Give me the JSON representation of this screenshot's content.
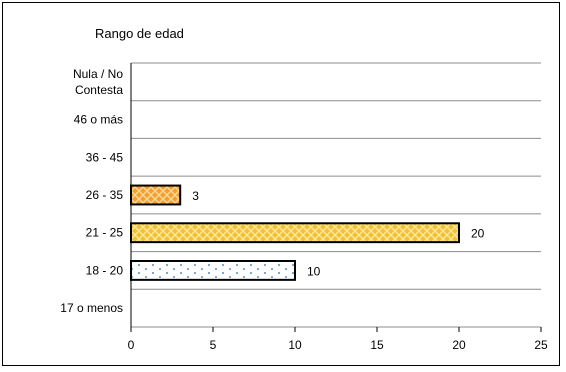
{
  "chart_data": {
    "type": "bar",
    "orientation": "horizontal",
    "title": "Rango de edad",
    "xlabel": "",
    "ylabel": "",
    "categories": [
      "17 o menos",
      "18 - 20",
      "21 - 25",
      "26 - 35",
      "36 - 45",
      "46 o más",
      "Nula / No Contesta"
    ],
    "values": [
      null,
      10,
      20,
      3,
      null,
      null,
      null
    ],
    "xlim": [
      0,
      25
    ],
    "xticks": [
      0,
      5,
      10,
      15,
      20,
      25
    ],
    "grid": "horizontal",
    "legend": "none",
    "data_labels": true,
    "bar_styles": {
      "18 - 20": {
        "fill": "#ffffff",
        "pattern": "dots",
        "pattern_color": "#7fa4d6"
      },
      "21 - 25": {
        "fill": "#f3c233",
        "pattern": "diamonds",
        "pattern_color": "#fbe8a0"
      },
      "26 - 35": {
        "fill": "#f5a02a",
        "pattern": "diamonds",
        "pattern_color": "#fcd9a0"
      }
    }
  }
}
